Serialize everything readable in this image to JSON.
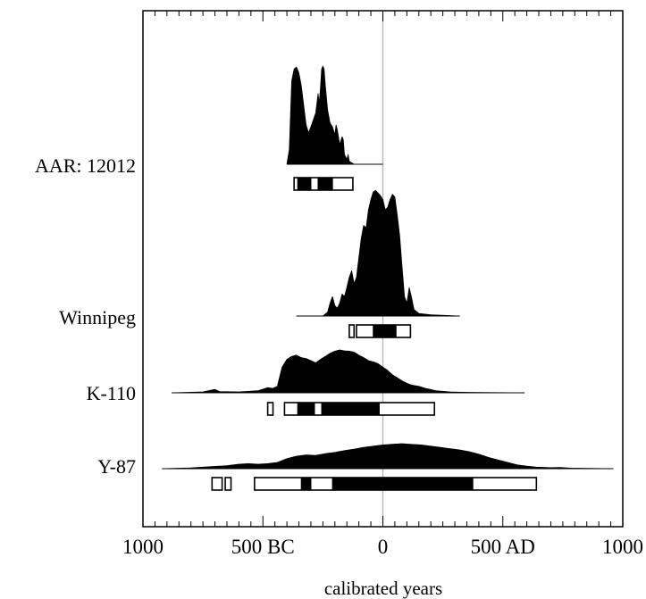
{
  "chart_data": {
    "type": "area",
    "title": "",
    "xlabel": "calibrated years",
    "ylabel": "",
    "x_unit": "calendar year (negative = BC, positive = AD)",
    "xlim": [
      -1000,
      1000
    ],
    "x_ticks": [
      {
        "value": -1000,
        "label": "1000"
      },
      {
        "value": -500,
        "label": "500 BC"
      },
      {
        "value": 0,
        "label": "0"
      },
      {
        "value": 500,
        "label": "500 AD"
      },
      {
        "value": 1000,
        "label": "1000"
      }
    ],
    "zero_line": true,
    "samples": [
      {
        "label": "AAR: 12012",
        "distribution_range": [
          -400,
          0
        ],
        "distribution": [
          [
            -400,
            0.0
          ],
          [
            -390,
            0.15
          ],
          [
            -380,
            0.85
          ],
          [
            -370,
            0.97
          ],
          [
            -360,
            0.99
          ],
          [
            -350,
            0.93
          ],
          [
            -340,
            0.8
          ],
          [
            -330,
            0.6
          ],
          [
            -320,
            0.4
          ],
          [
            -310,
            0.32
          ],
          [
            -300,
            0.38
          ],
          [
            -290,
            0.45
          ],
          [
            -280,
            0.52
          ],
          [
            -275,
            0.62
          ],
          [
            -270,
            0.72
          ],
          [
            -265,
            0.62
          ],
          [
            -260,
            0.78
          ],
          [
            -255,
            0.97
          ],
          [
            -250,
            1.0
          ],
          [
            -245,
            0.97
          ],
          [
            -240,
            0.8
          ],
          [
            -230,
            0.55
          ],
          [
            -220,
            0.42
          ],
          [
            -210,
            0.38
          ],
          [
            -200,
            0.3
          ],
          [
            -195,
            0.4
          ],
          [
            -190,
            0.35
          ],
          [
            -180,
            0.2
          ],
          [
            -170,
            0.28
          ],
          [
            -165,
            0.25
          ],
          [
            -160,
            0.1
          ],
          [
            -150,
            0.05
          ],
          [
            -145,
            0.1
          ],
          [
            -140,
            0.03
          ],
          [
            -120,
            0.0
          ]
        ],
        "ranges_2sigma": [
          [
            -370,
            -125
          ]
        ],
        "ranges_1sigma": [
          [
            -355,
            -300
          ],
          [
            -270,
            -210
          ]
        ]
      },
      {
        "label": "Winnipeg",
        "distribution_range": [
          -360,
          320
        ],
        "distribution": [
          [
            -360,
            0.0
          ],
          [
            -250,
            0.0
          ],
          [
            -230,
            0.03
          ],
          [
            -220,
            0.1
          ],
          [
            -210,
            0.15
          ],
          [
            -200,
            0.08
          ],
          [
            -190,
            0.06
          ],
          [
            -180,
            0.1
          ],
          [
            -170,
            0.17
          ],
          [
            -160,
            0.15
          ],
          [
            -150,
            0.22
          ],
          [
            -140,
            0.3
          ],
          [
            -130,
            0.35
          ],
          [
            -120,
            0.25
          ],
          [
            -110,
            0.3
          ],
          [
            -100,
            0.45
          ],
          [
            -90,
            0.6
          ],
          [
            -80,
            0.7
          ],
          [
            -70,
            0.68
          ],
          [
            -60,
            0.82
          ],
          [
            -50,
            0.9
          ],
          [
            -40,
            0.96
          ],
          [
            -30,
            0.97
          ],
          [
            -20,
            0.95
          ],
          [
            -10,
            0.93
          ],
          [
            0,
            0.9
          ],
          [
            10,
            0.82
          ],
          [
            20,
            0.84
          ],
          [
            30,
            0.9
          ],
          [
            40,
            0.94
          ],
          [
            50,
            0.92
          ],
          [
            60,
            0.78
          ],
          [
            70,
            0.62
          ],
          [
            80,
            0.38
          ],
          [
            90,
            0.15
          ],
          [
            100,
            0.1
          ],
          [
            110,
            0.22
          ],
          [
            120,
            0.14
          ],
          [
            130,
            0.05
          ],
          [
            150,
            0.02
          ],
          [
            200,
            0.01
          ],
          [
            320,
            0.0
          ]
        ],
        "ranges_2sigma": [
          [
            -140,
            -120
          ],
          [
            -110,
            115
          ]
        ],
        "ranges_1sigma": [
          [
            -40,
            55
          ]
        ]
      },
      {
        "label": "K-110",
        "distribution_range": [
          -880,
          590
        ],
        "distribution": [
          [
            -880,
            0.0
          ],
          [
            -750,
            0.02
          ],
          [
            -700,
            0.08
          ],
          [
            -680,
            0.03
          ],
          [
            -600,
            0.02
          ],
          [
            -520,
            0.05
          ],
          [
            -480,
            0.12
          ],
          [
            -460,
            0.1
          ],
          [
            -440,
            0.15
          ],
          [
            -420,
            0.6
          ],
          [
            -400,
            0.78
          ],
          [
            -380,
            0.85
          ],
          [
            -360,
            0.88
          ],
          [
            -340,
            0.82
          ],
          [
            -320,
            0.8
          ],
          [
            -300,
            0.75
          ],
          [
            -280,
            0.7
          ],
          [
            -260,
            0.78
          ],
          [
            -240,
            0.85
          ],
          [
            -220,
            0.92
          ],
          [
            -200,
            0.97
          ],
          [
            -180,
            1.0
          ],
          [
            -160,
            0.98
          ],
          [
            -140,
            0.97
          ],
          [
            -120,
            0.95
          ],
          [
            -100,
            0.88
          ],
          [
            -80,
            0.82
          ],
          [
            -60,
            0.75
          ],
          [
            -40,
            0.72
          ],
          [
            -20,
            0.68
          ],
          [
            0,
            0.6
          ],
          [
            20,
            0.52
          ],
          [
            40,
            0.42
          ],
          [
            60,
            0.35
          ],
          [
            80,
            0.28
          ],
          [
            100,
            0.22
          ],
          [
            120,
            0.18
          ],
          [
            150,
            0.15
          ],
          [
            180,
            0.1
          ],
          [
            220,
            0.05
          ],
          [
            280,
            0.02
          ],
          [
            350,
            0.01
          ],
          [
            590,
            0.0
          ]
        ],
        "ranges_2sigma": [
          [
            -480,
            -458
          ],
          [
            -410,
            215
          ]
        ],
        "ranges_1sigma": [
          [
            -355,
            -285
          ],
          [
            -255,
            -15
          ]
        ]
      },
      {
        "label": "Y-87",
        "distribution_range": [
          -920,
          960
        ],
        "distribution": [
          [
            -920,
            0.0
          ],
          [
            -800,
            0.03
          ],
          [
            -720,
            0.08
          ],
          [
            -650,
            0.12
          ],
          [
            -600,
            0.18
          ],
          [
            -560,
            0.2
          ],
          [
            -520,
            0.18
          ],
          [
            -480,
            0.2
          ],
          [
            -440,
            0.25
          ],
          [
            -400,
            0.4
          ],
          [
            -360,
            0.5
          ],
          [
            -320,
            0.55
          ],
          [
            -280,
            0.53
          ],
          [
            -240,
            0.6
          ],
          [
            -200,
            0.65
          ],
          [
            -160,
            0.72
          ],
          [
            -120,
            0.78
          ],
          [
            -80,
            0.85
          ],
          [
            -40,
            0.9
          ],
          [
            0,
            0.95
          ],
          [
            40,
            0.98
          ],
          [
            80,
            1.0
          ],
          [
            120,
            0.97
          ],
          [
            160,
            0.95
          ],
          [
            200,
            0.9
          ],
          [
            240,
            0.85
          ],
          [
            280,
            0.8
          ],
          [
            320,
            0.75
          ],
          [
            360,
            0.68
          ],
          [
            400,
            0.58
          ],
          [
            440,
            0.45
          ],
          [
            480,
            0.35
          ],
          [
            520,
            0.25
          ],
          [
            560,
            0.15
          ],
          [
            600,
            0.1
          ],
          [
            640,
            0.06
          ],
          [
            700,
            0.04
          ],
          [
            740,
            0.05
          ],
          [
            780,
            0.02
          ],
          [
            850,
            0.01
          ],
          [
            960,
            0.0
          ]
        ],
        "ranges_2sigma": [
          [
            -712,
            -670
          ],
          [
            -657,
            -633
          ],
          [
            -535,
            640
          ]
        ],
        "ranges_1sigma": [
          [
            -340,
            -300
          ],
          [
            -210,
            375
          ]
        ]
      }
    ]
  }
}
